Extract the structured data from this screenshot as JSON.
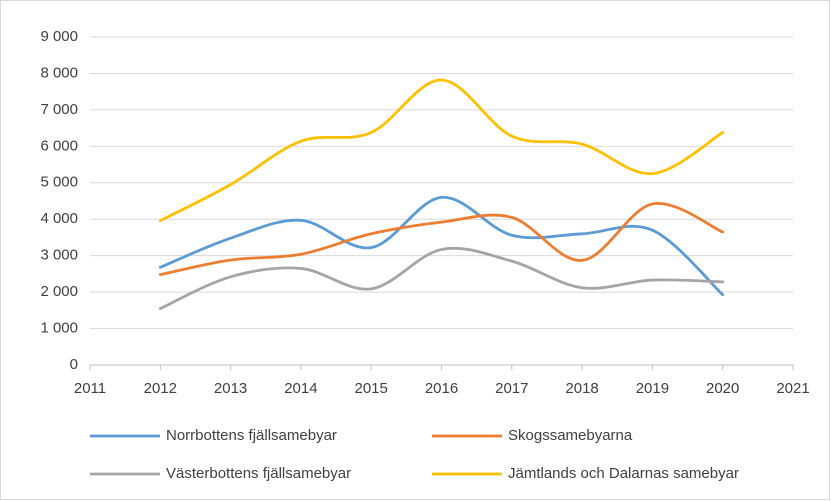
{
  "chart_data": {
    "type": "line",
    "x": [
      2012,
      2013,
      2014,
      2015,
      2016,
      2017,
      2018,
      2019,
      2020
    ],
    "series": [
      {
        "name": "Norrbottens fjällsamebyar",
        "color": "#5b9bd5",
        "values": [
          2680,
          3480,
          3970,
          3220,
          4600,
          3560,
          3600,
          3700,
          1930
        ]
      },
      {
        "name": "Skogssamebyarna",
        "color": "#ed7d31",
        "values": [
          2480,
          2880,
          3040,
          3600,
          3920,
          4050,
          2870,
          4420,
          3650
        ]
      },
      {
        "name": "Västerbottens fjällsamebyar",
        "color": "#a5a5a5",
        "values": [
          1550,
          2420,
          2650,
          2090,
          3170,
          2850,
          2120,
          2330,
          2280
        ]
      },
      {
        "name": "Jämtlands och Dalarnas samebyar",
        "color": "#ffc000",
        "values": [
          3960,
          4950,
          6140,
          6380,
          7820,
          6280,
          6060,
          5250,
          6380
        ]
      }
    ],
    "xlim": [
      2011,
      2021
    ],
    "xticks": [
      2011,
      2012,
      2013,
      2014,
      2015,
      2016,
      2017,
      2018,
      2019,
      2020,
      2021
    ],
    "ylim": [
      0,
      9000
    ],
    "yticks": [
      {
        "value": 0,
        "label": "0"
      },
      {
        "value": 1000,
        "label": "1 000"
      },
      {
        "value": 2000,
        "label": "2 000"
      },
      {
        "value": 3000,
        "label": "3 000"
      },
      {
        "value": 4000,
        "label": "4 000"
      },
      {
        "value": 5000,
        "label": "5 000"
      },
      {
        "value": 6000,
        "label": "6 000"
      },
      {
        "value": 7000,
        "label": "7 000"
      },
      {
        "value": 8000,
        "label": "8 000"
      },
      {
        "value": 9000,
        "label": "9 000"
      }
    ],
    "grid": true,
    "smooth": true,
    "legend": "bottom"
  }
}
